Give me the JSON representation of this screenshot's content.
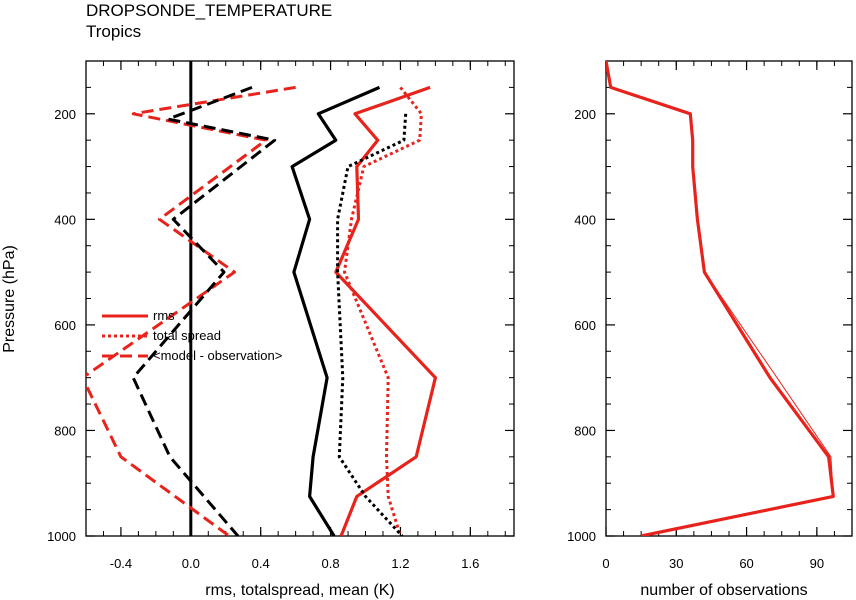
{
  "header": {
    "title": "DROPSONDE_TEMPERATURE",
    "subtitle": "Tropics"
  },
  "chart_data": [
    {
      "type": "line",
      "ylabel": "Pressure (hPa)",
      "xlabel": "rms, totalspread, mean (K)",
      "xlim": [
        -0.6,
        1.85
      ],
      "ylim": [
        1000,
        100
      ],
      "y_reversed": true,
      "x_ticks": [
        "-0.4",
        "0.0",
        "0.4",
        "0.8",
        "1.2",
        "1.6"
      ],
      "x_tick_values": [
        -0.4,
        0.0,
        0.4,
        0.8,
        1.2,
        1.6
      ],
      "y_ticks": [
        "200",
        "400",
        "600",
        "800",
        "1000"
      ],
      "y_tick_values": [
        200,
        400,
        600,
        800,
        1000
      ],
      "zero_line_x": 0,
      "legend": {
        "placement": "left-middle",
        "entries": [
          {
            "label": "rms",
            "style": "solid"
          },
          {
            "label": "total spread",
            "style": "dotted"
          },
          {
            "label": "<model - observation>",
            "style": "dashed"
          }
        ]
      },
      "series": [
        {
          "group": "red",
          "style": "solid",
          "color": "#e8231c",
          "points": [
            [
              1.37,
              150
            ],
            [
              0.94,
              200
            ],
            [
              1.07,
              250
            ],
            [
              0.95,
              300
            ],
            [
              0.96,
              400
            ],
            [
              0.83,
              500
            ],
            [
              1.4,
              700
            ],
            [
              1.29,
              850
            ],
            [
              0.95,
              925
            ],
            [
              0.86,
              1000
            ]
          ]
        },
        {
          "group": "black",
          "style": "solid",
          "color": "#000000",
          "points": [
            [
              1.08,
              150
            ],
            [
              0.73,
              200
            ],
            [
              0.83,
              250
            ],
            [
              0.58,
              300
            ],
            [
              0.68,
              400
            ],
            [
              0.59,
              500
            ],
            [
              0.78,
              700
            ],
            [
              0.7,
              850
            ],
            [
              0.68,
              925
            ],
            [
              0.82,
              1000
            ]
          ]
        },
        {
          "group": "red",
          "style": "dotted",
          "color": "#e8231c",
          "points": [
            [
              1.2,
              150
            ],
            [
              1.32,
              200
            ],
            [
              1.31,
              250
            ],
            [
              0.99,
              300
            ],
            [
              0.92,
              400
            ],
            [
              0.88,
              500
            ],
            [
              1.13,
              700
            ],
            [
              1.12,
              850
            ],
            [
              1.13,
              925
            ],
            [
              1.2,
              1000
            ]
          ]
        },
        {
          "group": "black",
          "style": "dotted",
          "color": "#000000",
          "points": [
            [
              1.23,
              200
            ],
            [
              1.22,
              250
            ],
            [
              0.9,
              300
            ],
            [
              0.84,
              400
            ],
            [
              0.84,
              500
            ],
            [
              0.87,
              700
            ],
            [
              0.85,
              850
            ],
            [
              1.0,
              925
            ],
            [
              1.21,
              1000
            ]
          ]
        },
        {
          "group": "red",
          "style": "dashed",
          "color": "#e8231c",
          "points": [
            [
              0.6,
              150
            ],
            [
              -0.33,
              200
            ],
            [
              0.43,
              250
            ],
            [
              -0.18,
              400
            ],
            [
              0.25,
              500
            ],
            [
              -0.62,
              700
            ],
            [
              -0.4,
              850
            ],
            [
              0.22,
              1000
            ]
          ]
        },
        {
          "group": "black",
          "style": "dashed",
          "color": "#000000",
          "points": [
            [
              0.35,
              150
            ],
            [
              -0.13,
              210
            ],
            [
              0.48,
              250
            ],
            [
              -0.1,
              400
            ],
            [
              0.19,
              500
            ],
            [
              -0.33,
              700
            ],
            [
              -0.12,
              850
            ],
            [
              0.27,
              1000
            ]
          ]
        }
      ]
    },
    {
      "type": "line",
      "xlabel": "number of observations",
      "xlim": [
        0,
        105
      ],
      "ylim": [
        1000,
        100
      ],
      "y_reversed": true,
      "x_ticks": [
        "0",
        "30",
        "60",
        "90"
      ],
      "x_tick_values": [
        0,
        30,
        60,
        90
      ],
      "y_ticks": [
        "200",
        "400",
        "600",
        "800",
        "1000"
      ],
      "y_tick_values": [
        200,
        400,
        600,
        800,
        1000
      ],
      "series": [
        {
          "group": "red",
          "style": "solid",
          "width": "thick",
          "color": "#e8231c",
          "points": [
            [
              0,
              100
            ],
            [
              2,
              150
            ],
            [
              36,
              200
            ],
            [
              37,
              250
            ],
            [
              37,
              300
            ],
            [
              39,
              400
            ],
            [
              42,
              500
            ],
            [
              70,
              700
            ],
            [
              95,
              850
            ],
            [
              97,
              925
            ],
            [
              15,
              1000
            ]
          ]
        },
        {
          "group": "red",
          "style": "solid",
          "width": "thin",
          "color": "#e8231c",
          "points": [
            [
              0,
              100
            ],
            [
              2,
              150
            ],
            [
              36,
              200
            ],
            [
              37,
              250
            ],
            [
              37,
              300
            ],
            [
              39,
              400
            ],
            [
              42,
              500
            ],
            [
              73,
              700
            ],
            [
              96,
              850
            ],
            [
              97,
              925
            ],
            [
              15,
              1000
            ]
          ]
        }
      ]
    }
  ]
}
